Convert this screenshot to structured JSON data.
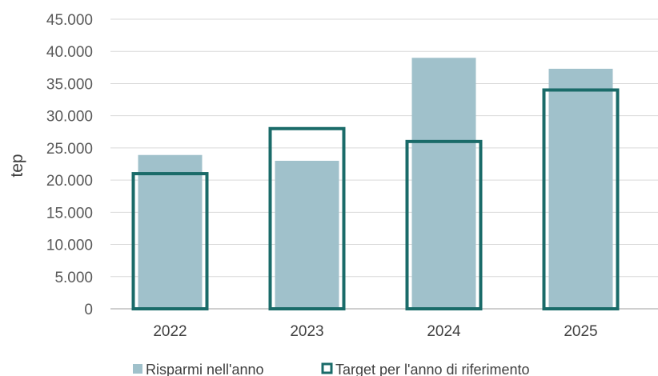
{
  "chart_data": {
    "type": "bar",
    "title": "",
    "xlabel": "",
    "ylabel": "tep",
    "categories": [
      "2022",
      "2023",
      "2024",
      "2025"
    ],
    "ylim": [
      0,
      45000
    ],
    "yticks": [
      0,
      5000,
      10000,
      15000,
      20000,
      25000,
      30000,
      35000,
      40000,
      45000
    ],
    "ytick_labels": [
      "0",
      "5.000",
      "10.000",
      "15.000",
      "20.000",
      "25.000",
      "30.000",
      "35.000",
      "40.000",
      "45.000"
    ],
    "grid": true,
    "legend_position": "bottom",
    "series": [
      {
        "name": "Risparmi nell'anno",
        "style": "filled",
        "color": "#a0c1cb",
        "values": [
          23900,
          23000,
          39000,
          37300
        ]
      },
      {
        "name": "Target per l'anno di riferimento",
        "style": "outline",
        "color": "#1a6b69",
        "values": [
          21000,
          28000,
          26000,
          34000
        ]
      }
    ]
  }
}
